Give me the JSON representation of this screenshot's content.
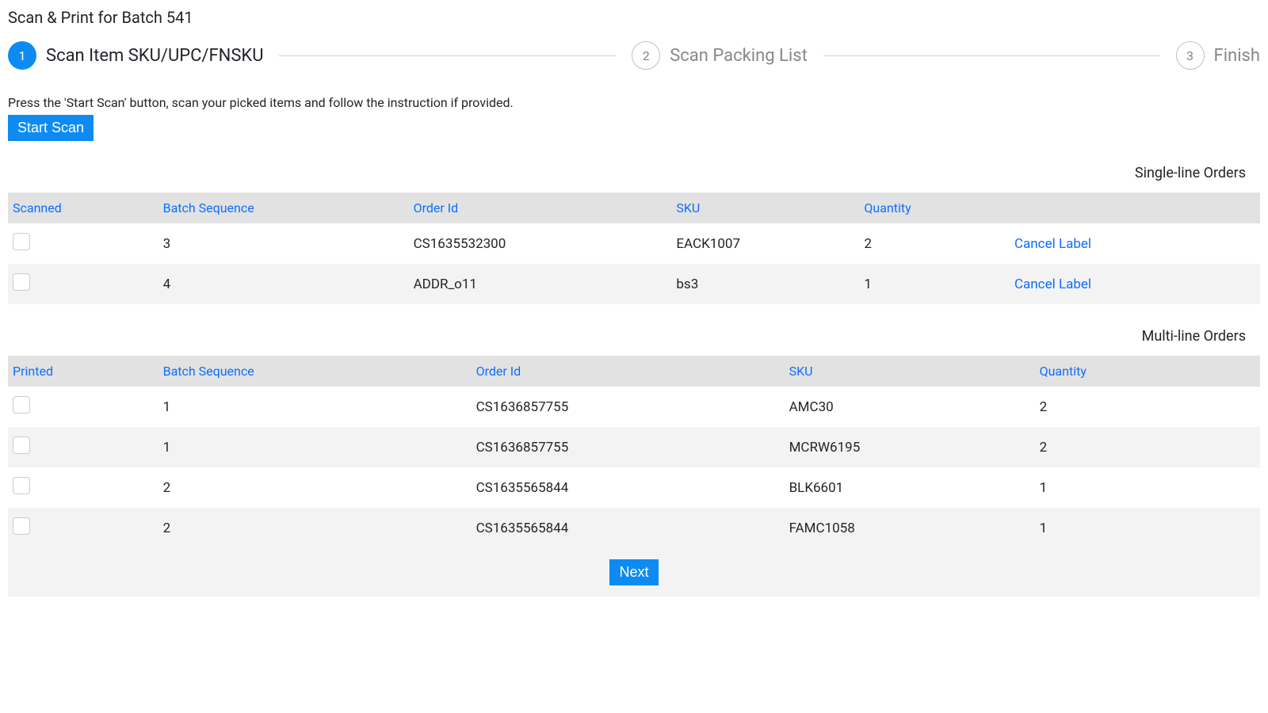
{
  "page": {
    "title": "Scan & Print for Batch 541"
  },
  "stepper": {
    "steps": [
      {
        "num": "1",
        "label": "Scan Item SKU/UPC/FNSKU",
        "active": true
      },
      {
        "num": "2",
        "label": "Scan Packing List",
        "active": false
      },
      {
        "num": "3",
        "label": "Finish",
        "active": false
      }
    ]
  },
  "instruction": "Press the 'Start Scan' button, scan your picked items and follow the instruction if provided.",
  "buttons": {
    "start_scan": "Start Scan",
    "next": "Next",
    "cancel_label": "Cancel Label"
  },
  "tables": {
    "single": {
      "title": "Single-line Orders",
      "columns": [
        "Scanned",
        "Batch Sequence",
        "Order Id",
        "SKU",
        "Quantity",
        ""
      ],
      "col_widths": [
        "12%",
        "20%",
        "21%",
        "15%",
        "12%",
        "20%"
      ],
      "rows": [
        {
          "batch_seq": "3",
          "order_id": "CS1635532300",
          "sku": "EACK1007",
          "qty": "2"
        },
        {
          "batch_seq": "4",
          "order_id": "ADDR_o11",
          "sku": "bs3",
          "qty": "1"
        }
      ]
    },
    "multi": {
      "title": "Multi-line Orders",
      "columns": [
        "Printed",
        "Batch Sequence",
        "Order Id",
        "SKU",
        "Quantity"
      ],
      "col_widths": [
        "12%",
        "25%",
        "25%",
        "20%",
        "18%"
      ],
      "rows": [
        {
          "batch_seq": "1",
          "order_id": "CS1636857755",
          "sku": "AMC30",
          "qty": "2"
        },
        {
          "batch_seq": "1",
          "order_id": "CS1636857755",
          "sku": "MCRW6195",
          "qty": "2"
        },
        {
          "batch_seq": "2",
          "order_id": "CS1635565844",
          "sku": "BLK6601",
          "qty": "1"
        },
        {
          "batch_seq": "2",
          "order_id": "CS1635565844",
          "sku": "FAMC1058",
          "qty": "1"
        }
      ]
    }
  },
  "colors": {
    "primary": "#0d8bf2",
    "link": "#0d6efd",
    "header_bg": "#e2e2e2",
    "row_alt_bg": "#f3f3f3",
    "text": "#212529",
    "muted": "#888888",
    "border": "#cccccc"
  }
}
